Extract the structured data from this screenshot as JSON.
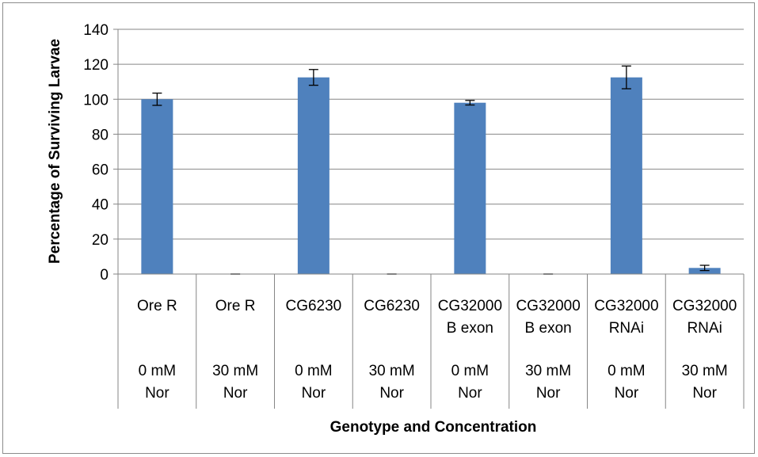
{
  "chart_data": {
    "type": "bar",
    "title": "",
    "xlabel": "Genotype and Concentration",
    "ylabel": "Percentage of Surviving Larvae",
    "ylim": [
      0,
      140
    ],
    "yticks": [
      0,
      20,
      40,
      60,
      80,
      100,
      120,
      140
    ],
    "grid": true,
    "legend": "none",
    "categories": [
      {
        "genotype": [
          "Ore R"
        ],
        "concentration": [
          "0 mM",
          "Nor"
        ]
      },
      {
        "genotype": [
          "Ore R"
        ],
        "concentration": [
          "30 mM",
          "Nor"
        ]
      },
      {
        "genotype": [
          "CG6230"
        ],
        "concentration": [
          "0 mM",
          "Nor"
        ]
      },
      {
        "genotype": [
          "CG6230"
        ],
        "concentration": [
          "30 mM",
          "Nor"
        ]
      },
      {
        "genotype": [
          "CG32000",
          "B exon"
        ],
        "concentration": [
          "0 mM",
          "Nor"
        ]
      },
      {
        "genotype": [
          "CG32000",
          "B exon"
        ],
        "concentration": [
          "30 mM",
          "Nor"
        ]
      },
      {
        "genotype": [
          "CG32000",
          "RNAi"
        ],
        "concentration": [
          "0 mM",
          "Nor"
        ]
      },
      {
        "genotype": [
          "CG32000",
          "RNAi"
        ],
        "concentration": [
          "30 mM",
          "Nor"
        ]
      }
    ],
    "values": [
      100,
      0,
      112.5,
      0,
      98,
      0,
      112.5,
      3.5
    ],
    "errors": [
      3.5,
      0,
      4.5,
      0,
      1.3,
      0,
      6.5,
      1.5
    ],
    "bar_color": "#4F81BD",
    "grid_color": "#868686"
  }
}
